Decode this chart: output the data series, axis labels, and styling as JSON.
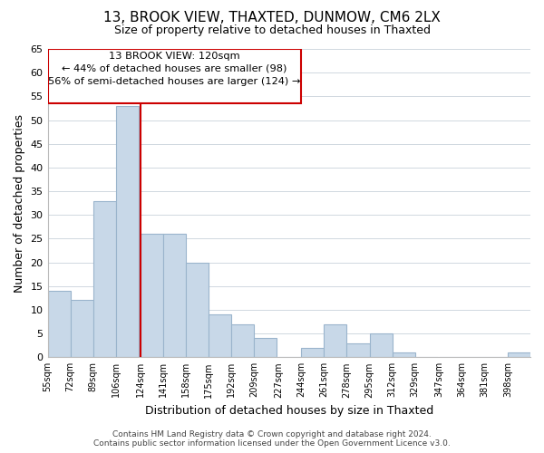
{
  "title": "13, BROOK VIEW, THAXTED, DUNMOW, CM6 2LX",
  "subtitle": "Size of property relative to detached houses in Thaxted",
  "xlabel": "Distribution of detached houses by size in Thaxted",
  "ylabel": "Number of detached properties",
  "bar_color": "#c8d8e8",
  "bar_edge_color": "#9ab4cc",
  "bin_left_edges": [
    55,
    72,
    89,
    106,
    124,
    141,
    158,
    175,
    192,
    209,
    227,
    244,
    261,
    278,
    295,
    312,
    329,
    347,
    364,
    381,
    398
  ],
  "bin_width": 17,
  "bin_labels": [
    "55sqm",
    "72sqm",
    "89sqm",
    "106sqm",
    "124sqm",
    "141sqm",
    "158sqm",
    "175sqm",
    "192sqm",
    "209sqm",
    "227sqm",
    "244sqm",
    "261sqm",
    "278sqm",
    "295sqm",
    "312sqm",
    "329sqm",
    "347sqm",
    "364sqm",
    "381sqm",
    "398sqm"
  ],
  "bar_heights": [
    14,
    12,
    33,
    53,
    26,
    26,
    20,
    9,
    7,
    4,
    0,
    2,
    7,
    3,
    5,
    1,
    0,
    0,
    0,
    0,
    1
  ],
  "property_line_x": 124,
  "property_line_color": "#cc0000",
  "annotation_title": "13 BROOK VIEW: 120sqm",
  "annotation_line1": "← 44% of detached houses are smaller (98)",
  "annotation_line2": "56% of semi-detached houses are larger (124) →",
  "ylim": [
    0,
    65
  ],
  "yticks": [
    0,
    5,
    10,
    15,
    20,
    25,
    30,
    35,
    40,
    45,
    50,
    55,
    60,
    65
  ],
  "footer_line1": "Contains HM Land Registry data © Crown copyright and database right 2024.",
  "footer_line2": "Contains public sector information licensed under the Open Government Licence v3.0.",
  "background_color": "#ffffff",
  "grid_color": "#d0d8e0"
}
